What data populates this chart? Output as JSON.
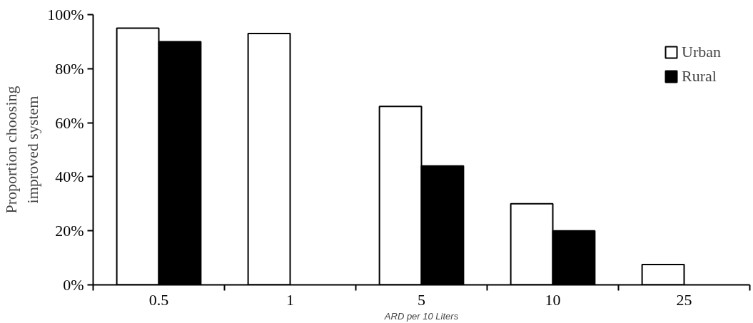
{
  "chart_data": {
    "type": "bar",
    "xlabel": "ARD per 10 Liters",
    "ylabel": "Proportion choosing\nimproved system",
    "categories": [
      "0.5",
      "1",
      "5",
      "10",
      "25"
    ],
    "series": [
      {
        "name": "Urban",
        "color": "#ffffff",
        "values": [
          95,
          93,
          66,
          30,
          7.5
        ]
      },
      {
        "name": "Rural",
        "color": "#000000",
        "values": [
          90,
          null,
          44,
          20,
          null
        ]
      }
    ],
    "ylim": [
      0,
      100
    ],
    "yticks": [
      {
        "value": 0,
        "label": "0%"
      },
      {
        "value": 20,
        "label": "20%"
      },
      {
        "value": 40,
        "label": "40%"
      },
      {
        "value": 60,
        "label": "60%"
      },
      {
        "value": 80,
        "label": "80%"
      },
      {
        "value": 100,
        "label": "100%"
      }
    ],
    "grid": false,
    "legend": "top right"
  }
}
